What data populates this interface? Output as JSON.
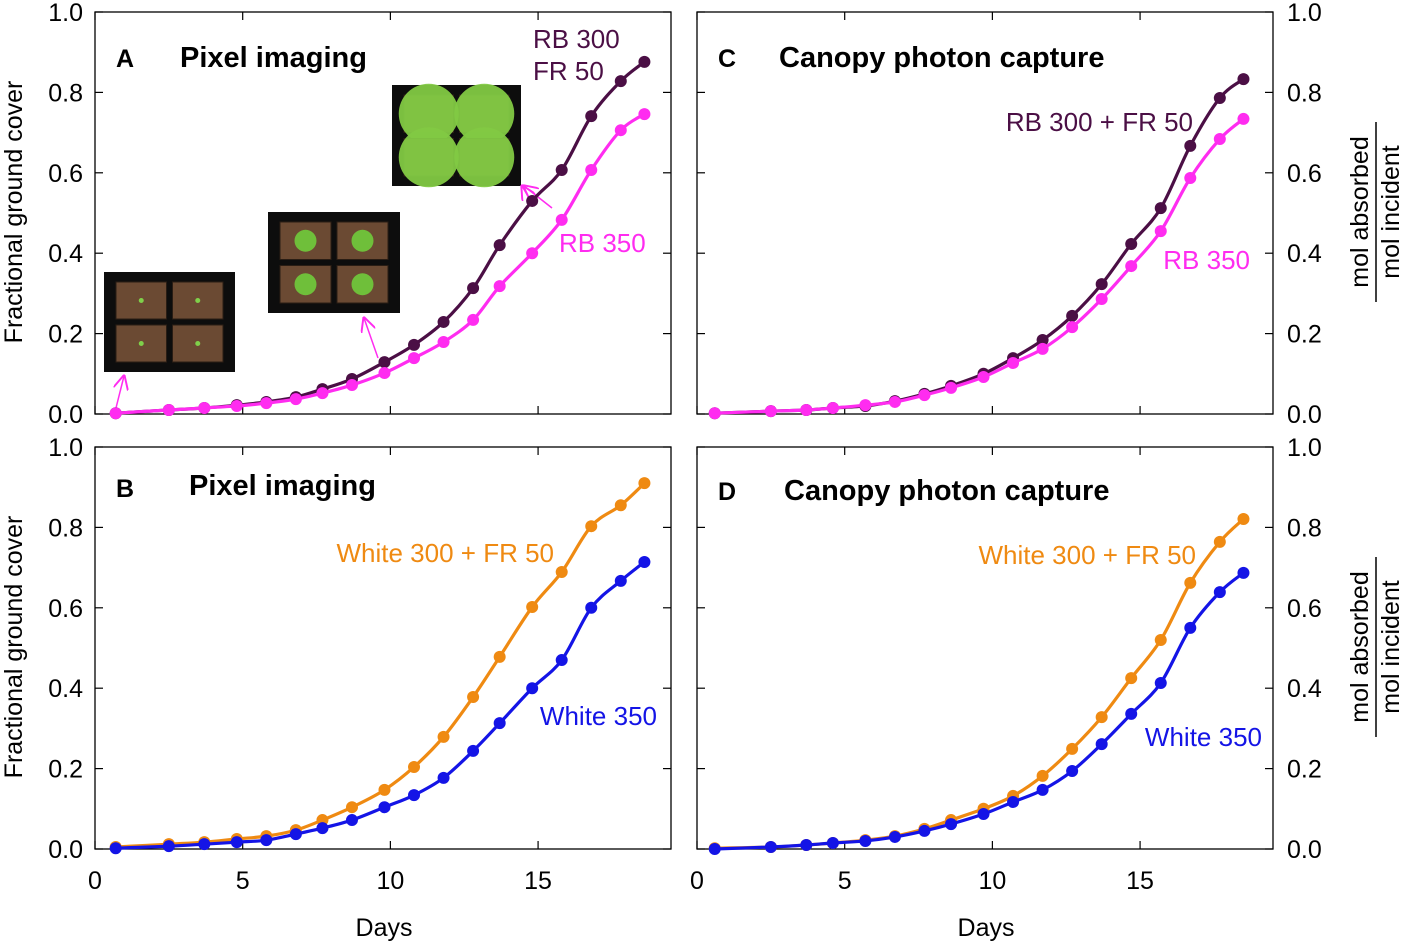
{
  "colors": {
    "rb_fr": "#4b0f45",
    "rb": "#ff2cf0",
    "white_fr": "#ef8a12",
    "white": "#1414e6",
    "axis": "#000000"
  },
  "axes": {
    "x_label": "Days",
    "y_label_left": "Fractional ground cover",
    "y_label_right_num": "mol absorbed",
    "y_label_right_den": "mol incident",
    "x_ticks": [
      "0",
      "5",
      "10",
      "15"
    ],
    "y_ticks": [
      "0.0",
      "0.2",
      "0.4",
      "0.6",
      "0.8",
      "1.0"
    ]
  },
  "chart_data": [
    {
      "panel": "A",
      "title": "Pixel imaging",
      "type": "line",
      "xlim": [
        0,
        19.5
      ],
      "ylim": [
        0,
        1
      ],
      "xlabel": "Days",
      "ylabel": "Fractional ground cover",
      "x": [
        0.7,
        2.5,
        3.7,
        4.8,
        5.8,
        6.8,
        7.7,
        8.7,
        9.8,
        10.8,
        11.8,
        12.8,
        13.7,
        14.8,
        15.8,
        16.8,
        17.8,
        18.6
      ],
      "series": [
        {
          "name": "RB 300 + FR 50",
          "label_lines": [
            "RB 300",
            "FR 50"
          ],
          "color_key": "rb_fr",
          "values": [
            0.002,
            0.01,
            0.015,
            0.022,
            0.03,
            0.042,
            0.062,
            0.087,
            0.129,
            0.172,
            0.229,
            0.313,
            0.42,
            0.53,
            0.607,
            0.741,
            0.828,
            0.876
          ]
        },
        {
          "name": "RB 350",
          "label_lines": [
            "RB 350"
          ],
          "color_key": "rb",
          "values": [
            0.002,
            0.01,
            0.015,
            0.02,
            0.027,
            0.037,
            0.052,
            0.072,
            0.102,
            0.139,
            0.179,
            0.234,
            0.318,
            0.4,
            0.483,
            0.607,
            0.706,
            0.746
          ]
        }
      ]
    },
    {
      "panel": "B",
      "title": "Pixel imaging",
      "type": "line",
      "xlim": [
        0,
        19.5
      ],
      "ylim": [
        0,
        1
      ],
      "xlabel": "Days",
      "ylabel": "Fractional ground cover",
      "x": [
        0.7,
        2.5,
        3.7,
        4.8,
        5.8,
        6.8,
        7.7,
        8.7,
        9.8,
        10.8,
        11.8,
        12.8,
        13.7,
        14.8,
        15.8,
        16.8,
        17.8,
        18.6
      ],
      "series": [
        {
          "name": "White 300 + FR 50",
          "label_lines": [
            "White 300 + FR 50"
          ],
          "color_key": "white_fr",
          "values": [
            0.005,
            0.012,
            0.017,
            0.025,
            0.032,
            0.047,
            0.072,
            0.104,
            0.147,
            0.204,
            0.279,
            0.378,
            0.478,
            0.602,
            0.689,
            0.803,
            0.855,
            0.91
          ]
        },
        {
          "name": "White 350",
          "label_lines": [
            "White 350"
          ],
          "color_key": "white",
          "values": [
            0.002,
            0.007,
            0.012,
            0.017,
            0.022,
            0.037,
            0.052,
            0.072,
            0.104,
            0.134,
            0.177,
            0.244,
            0.313,
            0.4,
            0.47,
            0.6,
            0.667,
            0.714
          ]
        }
      ]
    },
    {
      "panel": "C",
      "title": "Canopy photon capture",
      "type": "line",
      "xlim": [
        0,
        19.5
      ],
      "ylim": [
        0,
        1
      ],
      "xlabel": "Days",
      "ylabel": "mol absorbed / mol incident",
      "x": [
        0.6,
        2.5,
        3.7,
        4.6,
        5.7,
        6.7,
        7.7,
        8.6,
        9.7,
        10.7,
        11.7,
        12.7,
        13.7,
        14.7,
        15.7,
        16.7,
        17.7,
        18.5
      ],
      "series": [
        {
          "name": "RB 300 + FR 50",
          "label_lines": [
            "RB 300 + FR 50"
          ],
          "color_key": "rb_fr",
          "values": [
            0.002,
            0.007,
            0.01,
            0.015,
            0.02,
            0.032,
            0.05,
            0.07,
            0.1,
            0.139,
            0.184,
            0.244,
            0.323,
            0.423,
            0.512,
            0.667,
            0.786,
            0.833
          ]
        },
        {
          "name": "RB 350",
          "label_lines": [
            "RB 350"
          ],
          "color_key": "rb",
          "values": [
            0.002,
            0.007,
            0.01,
            0.015,
            0.022,
            0.03,
            0.047,
            0.065,
            0.092,
            0.127,
            0.162,
            0.216,
            0.286,
            0.368,
            0.455,
            0.587,
            0.684,
            0.734
          ]
        }
      ]
    },
    {
      "panel": "D",
      "title": "Canopy photon capture",
      "type": "line",
      "xlim": [
        0,
        19.5
      ],
      "ylim": [
        0,
        1
      ],
      "xlabel": "Days",
      "ylabel": "mol absorbed / mol incident",
      "x": [
        0.6,
        2.5,
        3.7,
        4.6,
        5.7,
        6.7,
        7.7,
        8.6,
        9.7,
        10.7,
        11.7,
        12.7,
        13.7,
        14.7,
        15.7,
        16.7,
        17.7,
        18.5
      ],
      "series": [
        {
          "name": "White 300 + FR 50",
          "label_lines": [
            "White 300 + FR 50"
          ],
          "color_key": "white_fr",
          "values": [
            0.002,
            0.005,
            0.01,
            0.015,
            0.022,
            0.032,
            0.05,
            0.072,
            0.1,
            0.132,
            0.182,
            0.249,
            0.328,
            0.425,
            0.52,
            0.662,
            0.764,
            0.821
          ]
        },
        {
          "name": "White 350",
          "label_lines": [
            "White 350"
          ],
          "color_key": "white",
          "values": [
            0.0,
            0.005,
            0.01,
            0.015,
            0.02,
            0.03,
            0.045,
            0.062,
            0.087,
            0.117,
            0.147,
            0.194,
            0.261,
            0.336,
            0.413,
            0.55,
            0.639,
            0.687
          ]
        }
      ]
    }
  ]
}
